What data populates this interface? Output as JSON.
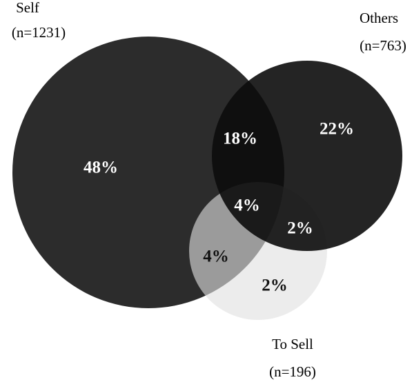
{
  "sets": [
    {
      "label": "Self",
      "n": "(n=1231)"
    },
    {
      "label": "Others",
      "n": "(n=763)"
    },
    {
      "label": "To Sell",
      "n": "(n=196)"
    }
  ],
  "regions": {
    "self_only": "48%",
    "self_others": "18%",
    "others_only": "22%",
    "all_three": "4%",
    "others_tosell": "2%",
    "self_tosell": "4%",
    "tosell_only": "2%"
  }
}
